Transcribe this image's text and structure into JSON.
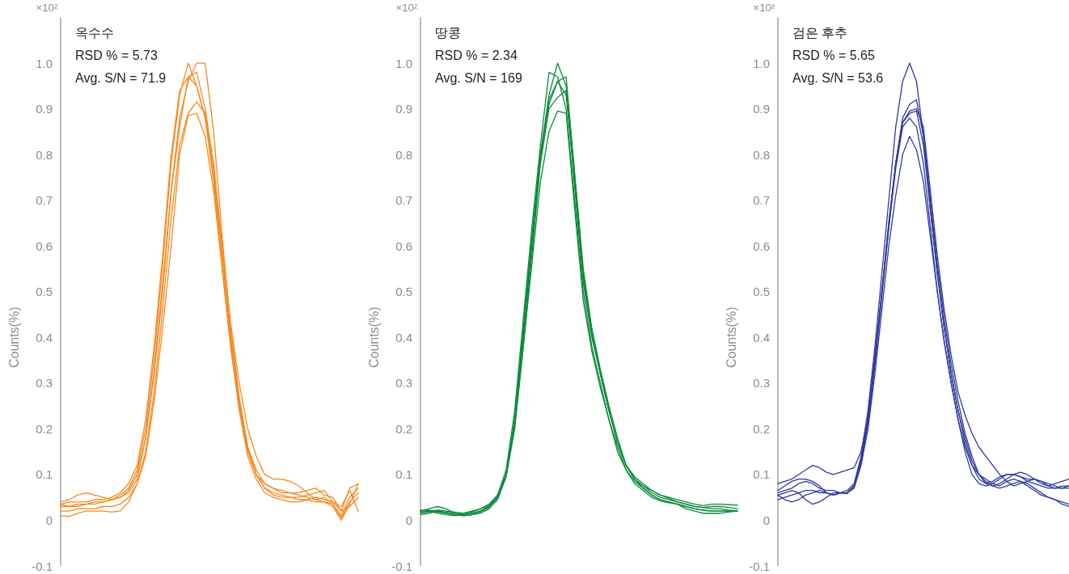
{
  "chart_data": [
    {
      "type": "line",
      "title": "옥수수",
      "annotations": [
        "×10²",
        "RSD % = 5.73",
        "Avg. S/N = 71.9"
      ],
      "ylabel": "Counts(%)",
      "ylim": [
        -0.1,
        1.1
      ],
      "yticks": [
        {
          "value": -0.1,
          "label": "-0.1"
        },
        {
          "value": 0,
          "label": "0"
        },
        {
          "value": 0.1,
          "label": "0.1"
        },
        {
          "value": 0.2,
          "label": "0.2"
        },
        {
          "value": 0.3,
          "label": "0.3"
        },
        {
          "value": 0.4,
          "label": "0.4"
        },
        {
          "value": 0.5,
          "label": "0.5"
        },
        {
          "value": 0.6,
          "label": "0.6"
        },
        {
          "value": 0.7,
          "label": "0.7"
        },
        {
          "value": 0.8,
          "label": "0.8"
        },
        {
          "value": 0.9,
          "label": "0.9"
        },
        {
          "value": 1.0,
          "label": "1.0"
        }
      ],
      "tick_labels": "y",
      "grid": false,
      "categories": [
        null,
        null,
        null,
        null,
        null,
        null,
        null,
        null,
        null,
        null,
        null,
        null,
        null,
        null,
        null,
        null,
        null,
        null,
        null,
        null,
        null,
        null,
        null,
        null,
        null,
        null,
        null,
        null,
        null,
        null,
        null,
        null,
        null,
        null,
        null,
        null
      ],
      "series": [
        {
          "color": "#f5891f",
          "values": [
            0.035,
            0.03,
            0.03,
            0.035,
            0.035,
            0.04,
            0.045,
            0.05,
            0.06,
            0.09,
            0.18,
            0.33,
            0.52,
            0.72,
            0.88,
            0.96,
            1.0,
            1.0,
            0.85,
            0.62,
            0.42,
            0.27,
            0.16,
            0.1,
            0.07,
            0.06,
            0.055,
            0.05,
            0.045,
            0.045,
            0.04,
            0.04,
            0.035,
            0.01,
            0.05,
            0.07
          ]
        },
        {
          "color": "#f5891f",
          "values": [
            0.04,
            0.045,
            0.055,
            0.06,
            0.055,
            0.05,
            0.045,
            0.055,
            0.07,
            0.11,
            0.2,
            0.36,
            0.56,
            0.78,
            0.93,
            1.0,
            0.95,
            0.88,
            0.74,
            0.55,
            0.38,
            0.25,
            0.15,
            0.1,
            0.08,
            0.07,
            0.065,
            0.06,
            0.06,
            0.065,
            0.07,
            0.055,
            0.05,
            0.02,
            0.07,
            0.08
          ]
        },
        {
          "color": "#f5891f",
          "values": [
            0.03,
            0.03,
            0.035,
            0.035,
            0.04,
            0.04,
            0.045,
            0.05,
            0.065,
            0.1,
            0.18,
            0.32,
            0.5,
            0.72,
            0.86,
            0.97,
            0.98,
            0.9,
            0.78,
            0.6,
            0.43,
            0.3,
            0.2,
            0.14,
            0.1,
            0.09,
            0.09,
            0.085,
            0.075,
            0.06,
            0.045,
            0.05,
            0.035,
            0.005,
            0.04,
            0.06
          ]
        },
        {
          "color": "#f5891f",
          "values": [
            0.02,
            0.02,
            0.025,
            0.025,
            0.025,
            0.03,
            0.03,
            0.035,
            0.05,
            0.08,
            0.15,
            0.28,
            0.46,
            0.66,
            0.82,
            0.89,
            0.915,
            0.89,
            0.76,
            0.58,
            0.4,
            0.26,
            0.16,
            0.1,
            0.07,
            0.055,
            0.05,
            0.05,
            0.05,
            0.055,
            0.06,
            0.065,
            0.04,
            0.03,
            0.065,
            0.02
          ]
        },
        {
          "color": "#f5891f",
          "values": [
            0.01,
            0.008,
            0.015,
            0.02,
            0.02,
            0.02,
            0.018,
            0.02,
            0.04,
            0.08,
            0.14,
            0.26,
            0.42,
            0.6,
            0.8,
            0.885,
            0.89,
            0.84,
            0.72,
            0.55,
            0.38,
            0.24,
            0.14,
            0.09,
            0.06,
            0.05,
            0.045,
            0.04,
            0.04,
            0.045,
            0.05,
            0.045,
            0.04,
            0.02,
            0.03,
            0.05
          ]
        },
        {
          "color": "#f5891f",
          "values": [
            0.035,
            0.04,
            0.04,
            0.04,
            0.045,
            0.045,
            0.05,
            0.06,
            0.08,
            0.12,
            0.22,
            0.38,
            0.58,
            0.8,
            0.94,
            0.97,
            0.95,
            0.88,
            0.76,
            0.58,
            0.4,
            0.26,
            0.16,
            0.11,
            0.08,
            0.07,
            0.06,
            0.06,
            0.055,
            0.05,
            0.045,
            0.04,
            0.03,
            0.0,
            0.035,
            0.08
          ]
        }
      ]
    },
    {
      "type": "line",
      "title": "땅콩",
      "annotations": [
        "×10²",
        "RSD % = 2.34",
        "Avg. S/N = 169"
      ],
      "ylabel": "Counts(%)",
      "ylim": [
        -0.1,
        1.1
      ],
      "yticks": [
        {
          "value": -0.1,
          "label": "-0.1"
        },
        {
          "value": 0,
          "label": "0"
        },
        {
          "value": 0.1,
          "label": "0.1"
        },
        {
          "value": 0.2,
          "label": "0.2"
        },
        {
          "value": 0.3,
          "label": "0.3"
        },
        {
          "value": 0.4,
          "label": "0.4"
        },
        {
          "value": 0.5,
          "label": "0.5"
        },
        {
          "value": 0.6,
          "label": "0.6"
        },
        {
          "value": 0.7,
          "label": "0.7"
        },
        {
          "value": 0.8,
          "label": "0.8"
        },
        {
          "value": 0.9,
          "label": "0.9"
        },
        {
          "value": 1.0,
          "label": "1.0"
        }
      ],
      "tick_labels": "y",
      "grid": false,
      "categories": [
        null,
        null,
        null,
        null,
        null,
        null,
        null,
        null,
        null,
        null,
        null,
        null,
        null,
        null,
        null,
        null,
        null,
        null,
        null,
        null,
        null,
        null,
        null,
        null,
        null,
        null,
        null,
        null,
        null,
        null,
        null,
        null,
        null,
        null,
        null,
        null,
        null,
        null
      ],
      "series": [
        {
          "color": "#0e8a3c",
          "values": [
            0.02,
            0.025,
            0.03,
            0.025,
            0.015,
            0.012,
            0.015,
            0.02,
            0.03,
            0.05,
            0.1,
            0.22,
            0.42,
            0.62,
            0.8,
            0.93,
            1.0,
            0.95,
            0.73,
            0.52,
            0.4,
            0.32,
            0.24,
            0.17,
            0.12,
            0.09,
            0.075,
            0.06,
            0.05,
            0.045,
            0.04,
            0.035,
            0.03,
            0.028,
            0.025,
            0.025,
            0.022,
            0.02
          ]
        },
        {
          "color": "#0e8a3c",
          "values": [
            0.022,
            0.02,
            0.022,
            0.02,
            0.018,
            0.015,
            0.018,
            0.025,
            0.035,
            0.055,
            0.11,
            0.24,
            0.44,
            0.64,
            0.82,
            0.98,
            0.97,
            0.9,
            0.7,
            0.5,
            0.38,
            0.3,
            0.22,
            0.16,
            0.11,
            0.085,
            0.07,
            0.055,
            0.045,
            0.04,
            0.035,
            0.03,
            0.025,
            0.022,
            0.02,
            0.02,
            0.02,
            0.02
          ]
        },
        {
          "color": "#0e8a3c",
          "values": [
            0.018,
            0.02,
            0.015,
            0.012,
            0.01,
            0.012,
            0.015,
            0.02,
            0.03,
            0.05,
            0.1,
            0.21,
            0.4,
            0.6,
            0.79,
            0.92,
            0.96,
            0.97,
            0.76,
            0.55,
            0.42,
            0.33,
            0.25,
            0.18,
            0.12,
            0.09,
            0.075,
            0.065,
            0.055,
            0.05,
            0.045,
            0.04,
            0.035,
            0.032,
            0.035,
            0.035,
            0.034,
            0.033
          ]
        },
        {
          "color": "#0e8a3c",
          "values": [
            0.015,
            0.018,
            0.02,
            0.018,
            0.015,
            0.01,
            0.012,
            0.015,
            0.025,
            0.045,
            0.095,
            0.2,
            0.38,
            0.58,
            0.78,
            0.9,
            0.925,
            0.94,
            0.75,
            0.54,
            0.41,
            0.32,
            0.24,
            0.17,
            0.12,
            0.09,
            0.07,
            0.055,
            0.045,
            0.04,
            0.035,
            0.025,
            0.02,
            0.015,
            0.015,
            0.015,
            0.018,
            0.02
          ]
        },
        {
          "color": "#0e8a3c",
          "values": [
            0.012,
            0.015,
            0.02,
            0.015,
            0.012,
            0.01,
            0.012,
            0.018,
            0.028,
            0.05,
            0.1,
            0.21,
            0.38,
            0.56,
            0.74,
            0.85,
            0.895,
            0.89,
            0.68,
            0.48,
            0.37,
            0.29,
            0.22,
            0.15,
            0.11,
            0.08,
            0.065,
            0.05,
            0.042,
            0.038,
            0.035,
            0.03,
            0.025,
            0.022,
            0.02,
            0.02,
            0.02,
            0.02
          ]
        },
        {
          "color": "#0e8a3c",
          "values": [
            0.02,
            0.022,
            0.018,
            0.015,
            0.012,
            0.015,
            0.02,
            0.025,
            0.032,
            0.055,
            0.1,
            0.22,
            0.41,
            0.61,
            0.8,
            0.91,
            0.96,
            0.93,
            0.74,
            0.53,
            0.41,
            0.32,
            0.24,
            0.17,
            0.12,
            0.095,
            0.08,
            0.065,
            0.055,
            0.048,
            0.04,
            0.035,
            0.03,
            0.028,
            0.03,
            0.03,
            0.028,
            0.025
          ]
        }
      ]
    },
    {
      "type": "line",
      "title": "검은 후추",
      "annotations": [
        "×10²",
        "RSD % = 5.65",
        "Avg. S/N = 53.6"
      ],
      "ylabel": "Counts(%)",
      "ylim": [
        -0.1,
        1.1
      ],
      "yticks": [
        {
          "value": -0.1,
          "label": "-0.1"
        },
        {
          "value": 0,
          "label": "0"
        },
        {
          "value": 0.1,
          "label": "0.1"
        },
        {
          "value": 0.2,
          "label": "0.2"
        },
        {
          "value": 0.3,
          "label": "0.3"
        },
        {
          "value": 0.4,
          "label": "0.4"
        },
        {
          "value": 0.5,
          "label": "0.5"
        },
        {
          "value": 0.6,
          "label": "0.6"
        },
        {
          "value": 0.7,
          "label": "0.7"
        },
        {
          "value": 0.8,
          "label": "0.8"
        },
        {
          "value": 0.9,
          "label": "0.9"
        },
        {
          "value": 1.0,
          "label": "1.0"
        }
      ],
      "tick_labels": "y",
      "grid": false,
      "categories": [
        null,
        null,
        null,
        null,
        null,
        null,
        null,
        null,
        null,
        null,
        null,
        null,
        null,
        null,
        null,
        null,
        null,
        null,
        null,
        null,
        null,
        null,
        null,
        null,
        null,
        null,
        null,
        null,
        null,
        null,
        null,
        null,
        null,
        null,
        null,
        null,
        null,
        null,
        null,
        null,
        null,
        null,
        null
      ],
      "series": [
        {
          "color": "#2e3a9f",
          "values": [
            0.06,
            0.065,
            0.07,
            0.08,
            0.085,
            0.08,
            0.07,
            0.065,
            0.065,
            0.06,
            0.065,
            0.08,
            0.14,
            0.24,
            0.38,
            0.54,
            0.7,
            0.86,
            0.96,
            1.0,
            0.96,
            0.84,
            0.68,
            0.54,
            0.42,
            0.32,
            0.24,
            0.18,
            0.13,
            0.1,
            0.085,
            0.075,
            0.07,
            0.075,
            0.08,
            0.085,
            0.08,
            0.07,
            0.06,
            0.05,
            0.045,
            0.035,
            0.03
          ]
        },
        {
          "color": "#2e3a9f",
          "values": [
            0.08,
            0.085,
            0.09,
            0.1,
            0.11,
            0.12,
            0.115,
            0.105,
            0.1,
            0.105,
            0.11,
            0.115,
            0.15,
            0.23,
            0.36,
            0.5,
            0.65,
            0.78,
            0.88,
            0.91,
            0.92,
            0.84,
            0.7,
            0.56,
            0.44,
            0.34,
            0.26,
            0.19,
            0.14,
            0.1,
            0.08,
            0.075,
            0.08,
            0.09,
            0.1,
            0.105,
            0.1,
            0.09,
            0.08,
            0.075,
            0.08,
            0.085,
            0.09
          ]
        },
        {
          "color": "#2e3a9f",
          "values": [
            0.065,
            0.075,
            0.085,
            0.09,
            0.09,
            0.085,
            0.075,
            0.06,
            0.055,
            0.06,
            0.06,
            0.075,
            0.13,
            0.22,
            0.35,
            0.5,
            0.64,
            0.78,
            0.87,
            0.895,
            0.9,
            0.86,
            0.72,
            0.58,
            0.46,
            0.36,
            0.28,
            0.23,
            0.19,
            0.16,
            0.14,
            0.12,
            0.1,
            0.085,
            0.075,
            0.08,
            0.085,
            0.09,
            0.085,
            0.08,
            0.075,
            0.07,
            0.07
          ]
        },
        {
          "color": "#2e3a9f",
          "values": [
            0.045,
            0.05,
            0.055,
            0.06,
            0.065,
            0.065,
            0.06,
            0.06,
            0.055,
            0.06,
            0.058,
            0.075,
            0.13,
            0.22,
            0.35,
            0.5,
            0.65,
            0.78,
            0.87,
            0.89,
            0.895,
            0.82,
            0.68,
            0.54,
            0.42,
            0.32,
            0.24,
            0.17,
            0.12,
            0.09,
            0.08,
            0.085,
            0.095,
            0.1,
            0.1,
            0.095,
            0.09,
            0.09,
            0.085,
            0.075,
            0.07,
            0.07,
            0.075
          ]
        },
        {
          "color": "#2e3a9f",
          "values": [
            0.055,
            0.045,
            0.04,
            0.045,
            0.055,
            0.06,
            0.065,
            0.06,
            0.055,
            0.06,
            0.06,
            0.075,
            0.125,
            0.21,
            0.34,
            0.49,
            0.64,
            0.77,
            0.86,
            0.88,
            0.86,
            0.78,
            0.64,
            0.5,
            0.39,
            0.3,
            0.22,
            0.15,
            0.1,
            0.08,
            0.075,
            0.08,
            0.09,
            0.1,
            0.1,
            0.095,
            0.085,
            0.08,
            0.075,
            0.07,
            0.07,
            0.075,
            0.075
          ]
        },
        {
          "color": "#2e3a9f",
          "values": [
            0.055,
            0.06,
            0.065,
            0.06,
            0.045,
            0.035,
            0.04,
            0.05,
            0.06,
            0.06,
            0.06,
            0.07,
            0.12,
            0.2,
            0.32,
            0.46,
            0.6,
            0.71,
            0.8,
            0.84,
            0.81,
            0.74,
            0.62,
            0.5,
            0.39,
            0.3,
            0.22,
            0.16,
            0.12,
            0.1,
            0.09,
            0.08,
            0.075,
            0.085,
            0.09,
            0.085,
            0.075,
            0.065,
            0.055,
            0.05,
            0.045,
            0.04,
            0.035
          ]
        }
      ]
    }
  ]
}
